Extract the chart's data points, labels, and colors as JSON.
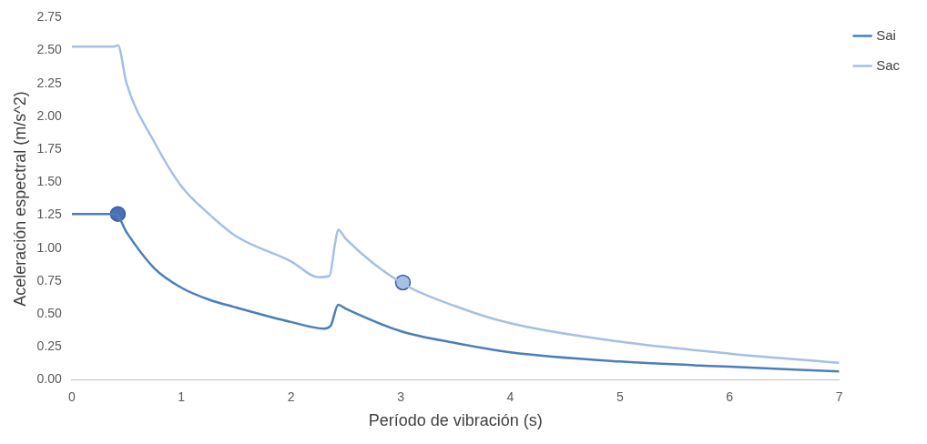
{
  "chart_data": {
    "type": "line",
    "xlabel": "Período de vibración (s)",
    "ylabel": "Aceleración espectral (m/s^2)",
    "xlim": [
      0,
      7
    ],
    "xticks": [
      0,
      1,
      2,
      3,
      4,
      5,
      6,
      7
    ],
    "ylim": [
      0,
      2.75
    ],
    "yticks": [
      {
        "value": 0,
        "label": "0.00"
      },
      {
        "value": 0.25,
        "label": "0.25"
      },
      {
        "value": 0.5,
        "label": "0.50"
      },
      {
        "value": 0.75,
        "label": "0.75"
      },
      {
        "value": 1,
        "label": "1.00"
      },
      {
        "value": 1.25,
        "label": "1.25"
      },
      {
        "value": 1.5,
        "label": "1.50"
      },
      {
        "value": 1.75,
        "label": "1.75"
      },
      {
        "value": 2,
        "label": "2.00"
      },
      {
        "value": 2.25,
        "label": "2.25"
      },
      {
        "value": 2.5,
        "label": "2.50"
      },
      {
        "value": 2.75,
        "label": "2.75"
      }
    ],
    "grid": false,
    "legend": "top right",
    "marker": "none",
    "series": [
      {
        "name": "Sai",
        "color": "#4a7ebb",
        "x": [
          0,
          0.2,
          0.4,
          0.5,
          0.75,
          1,
          1.25,
          1.5,
          2,
          2.3,
          2.36,
          2.43,
          2.5,
          3,
          3.5,
          4,
          5,
          6,
          7
        ],
        "values": [
          1.26,
          1.26,
          1.26,
          1.12,
          0.85,
          0.7,
          0.61,
          0.55,
          0.44,
          0.39,
          0.41,
          0.57,
          0.54,
          0.37,
          0.28,
          0.21,
          0.14,
          0.1,
          0.065
        ]
      },
      {
        "name": "Sac",
        "color": "#a5bfe6",
        "x": [
          0,
          0.2,
          0.38,
          0.42,
          0.5,
          0.75,
          1,
          1.25,
          1.5,
          2,
          2.25,
          2.35,
          2.4,
          2.43,
          2.5,
          3,
          3.5,
          4,
          5,
          6,
          7
        ],
        "values": [
          2.53,
          2.53,
          2.53,
          2.54,
          2.25,
          1.81,
          1.47,
          1.26,
          1.09,
          0.9,
          0.78,
          0.79,
          1.03,
          1.14,
          1.07,
          0.74,
          0.56,
          0.43,
          0.29,
          0.2,
          0.13
        ]
      },
      {
        "type": "scatter",
        "color": "#4a6fb5",
        "x": [
          0.42
        ],
        "values": [
          1.26
        ],
        "marker": "circle"
      },
      {
        "type": "scatter",
        "color": "#a5bfe6",
        "x": [
          3.02
        ],
        "values": [
          0.74
        ],
        "marker": "circle"
      }
    ]
  }
}
